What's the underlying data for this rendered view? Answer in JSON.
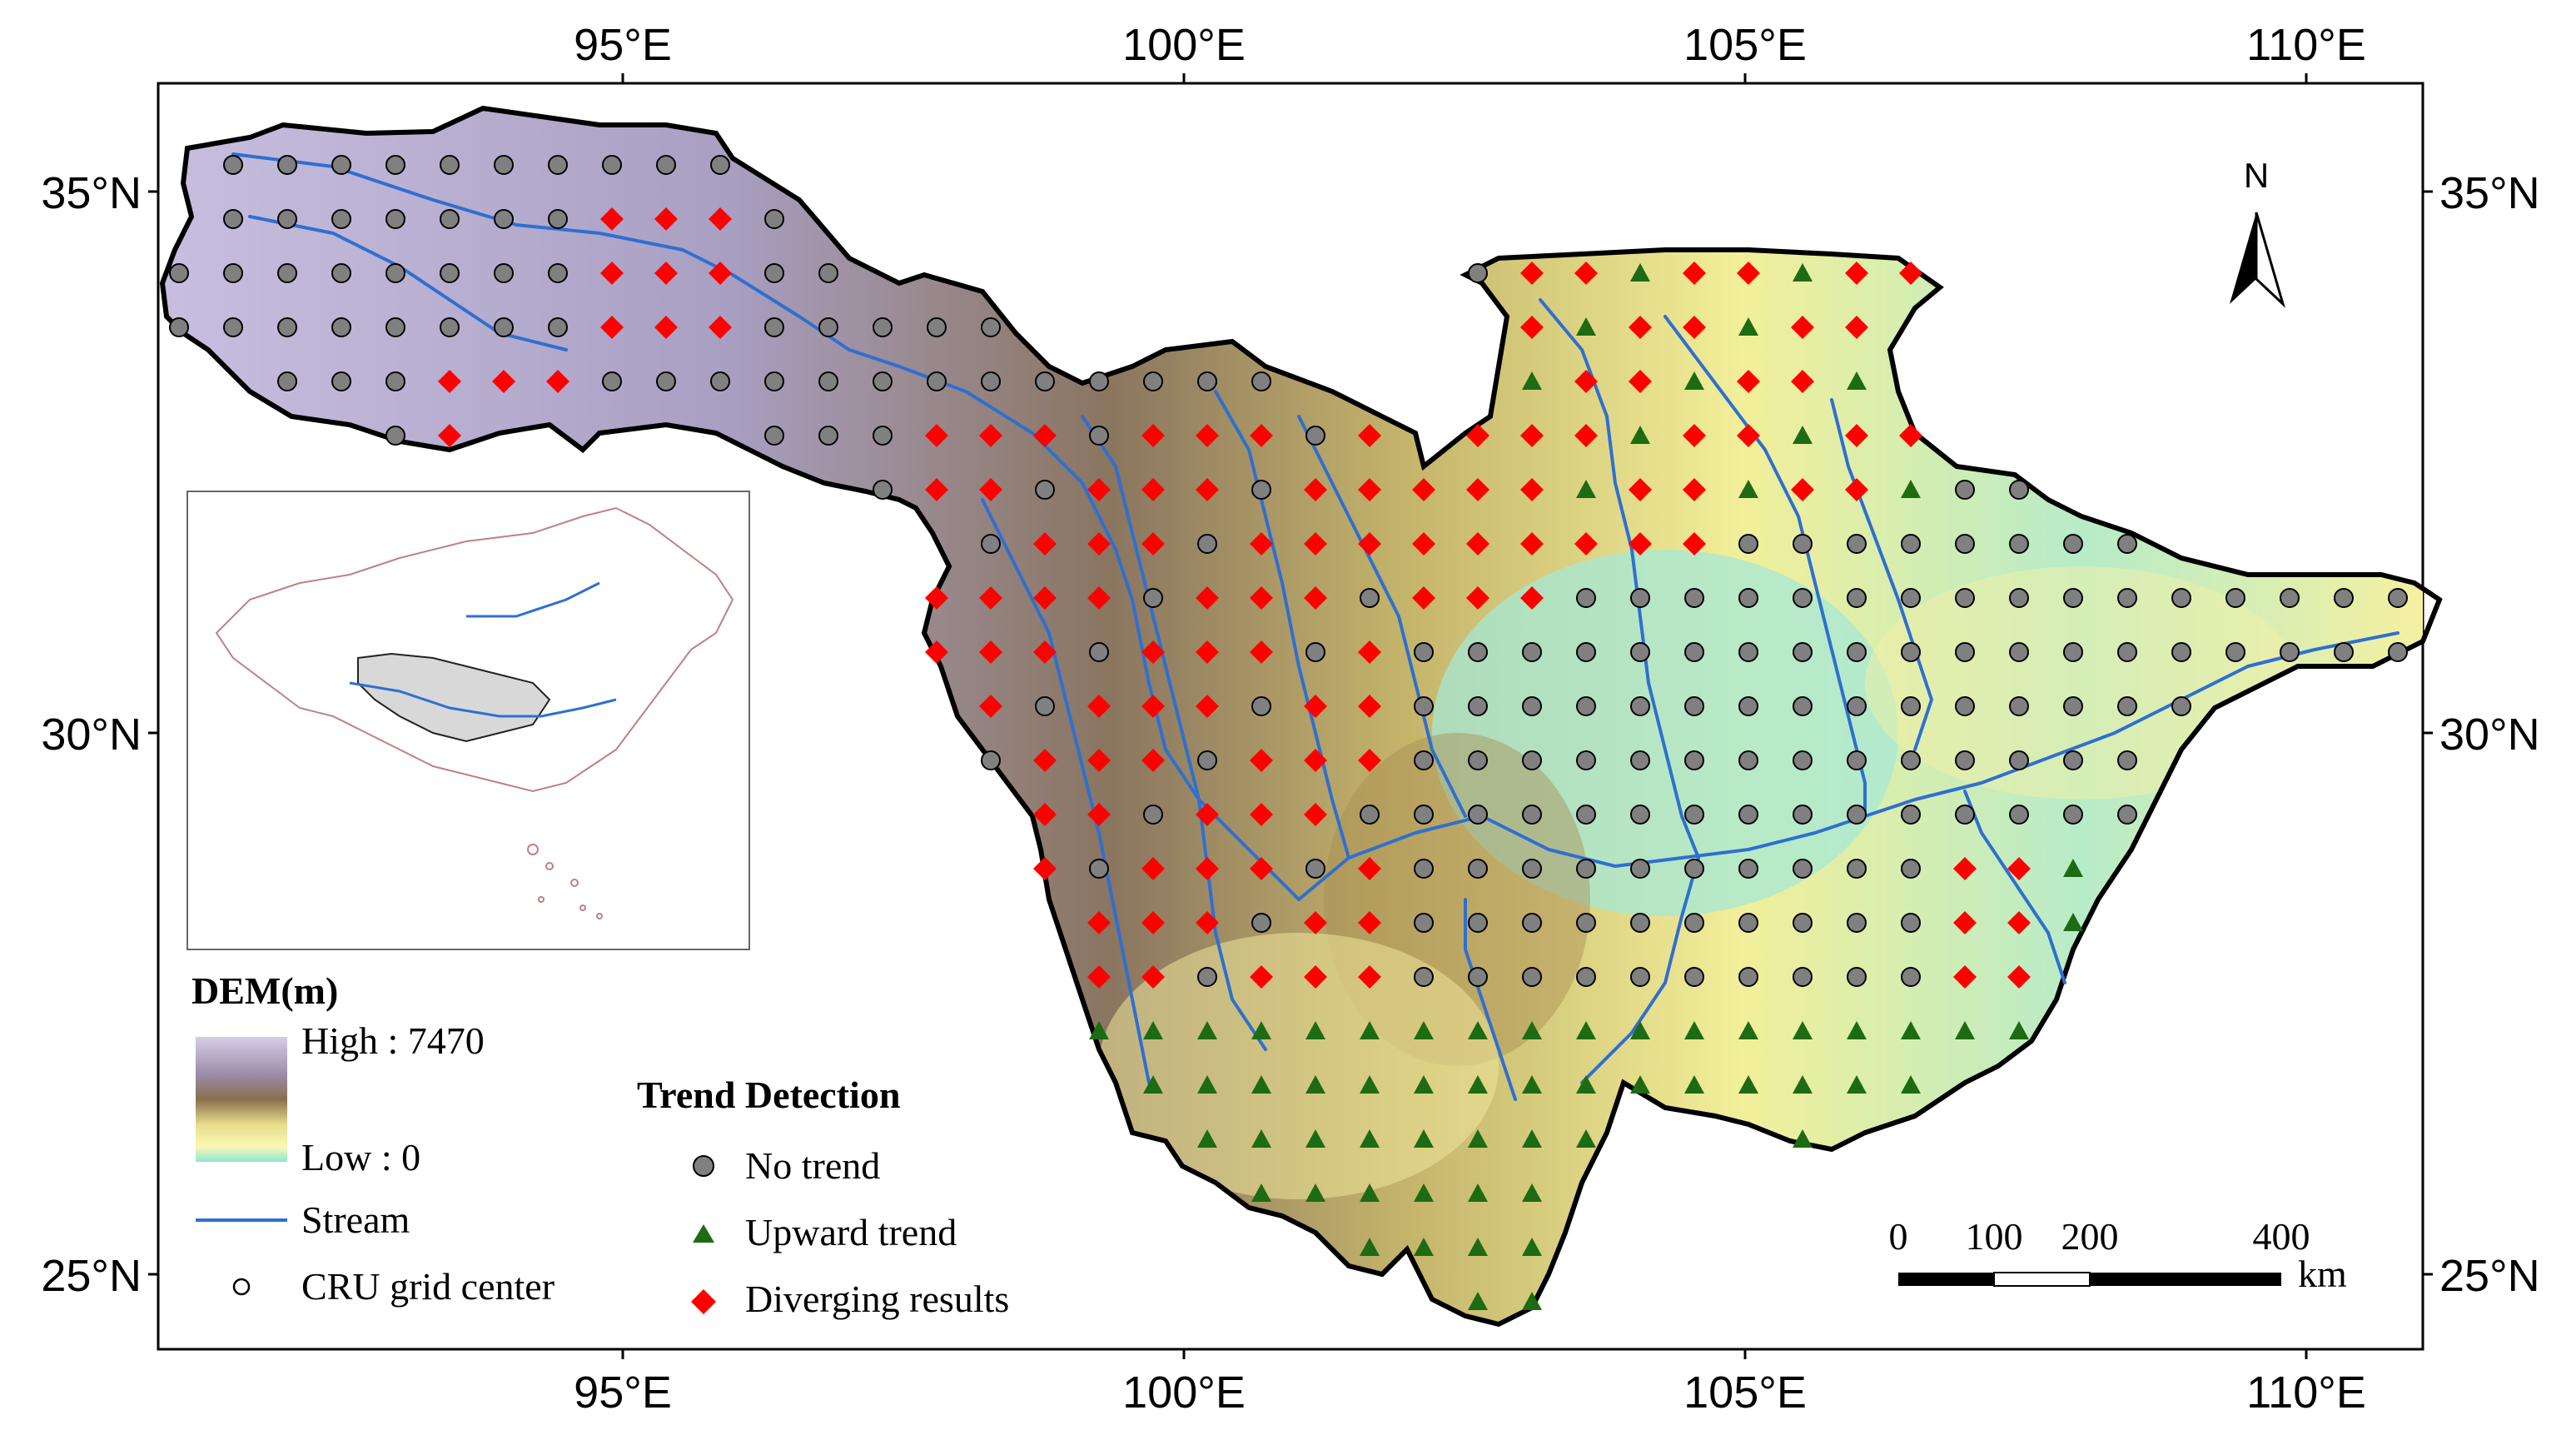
{
  "map": {
    "lon_ticks": [
      "95°E",
      "100°E",
      "105°E",
      "110°E"
    ],
    "lat_ticks": [
      "35°N",
      "30°N",
      "25°N"
    ],
    "north_label": "N",
    "scale_bar": {
      "labels": [
        "0",
        "100",
        "200",
        "400"
      ],
      "unit": "km"
    },
    "colors": {
      "stream": "#2f6fd0",
      "no_trend": "#808080",
      "upward_trend": "#1d6b12",
      "diverging": "#ff0000",
      "inset_country_outline": "#c08080",
      "inset_basin_fill": "#d8d8d8"
    }
  },
  "legend": {
    "dem_title": "DEM(m)",
    "dem_high": "High : 7470",
    "dem_low": "Low : 0",
    "stream_label": "Stream",
    "cru_label": "CRU grid center",
    "trend_title": "Trend Detection",
    "no_trend_label": "No trend",
    "upward_label": "Upward trend",
    "diverging_label": "Diverging results"
  },
  "grid_points": {
    "no_trend_icon": "circle",
    "upward_icon": "triangle",
    "diverging_icon": "diamond"
  }
}
